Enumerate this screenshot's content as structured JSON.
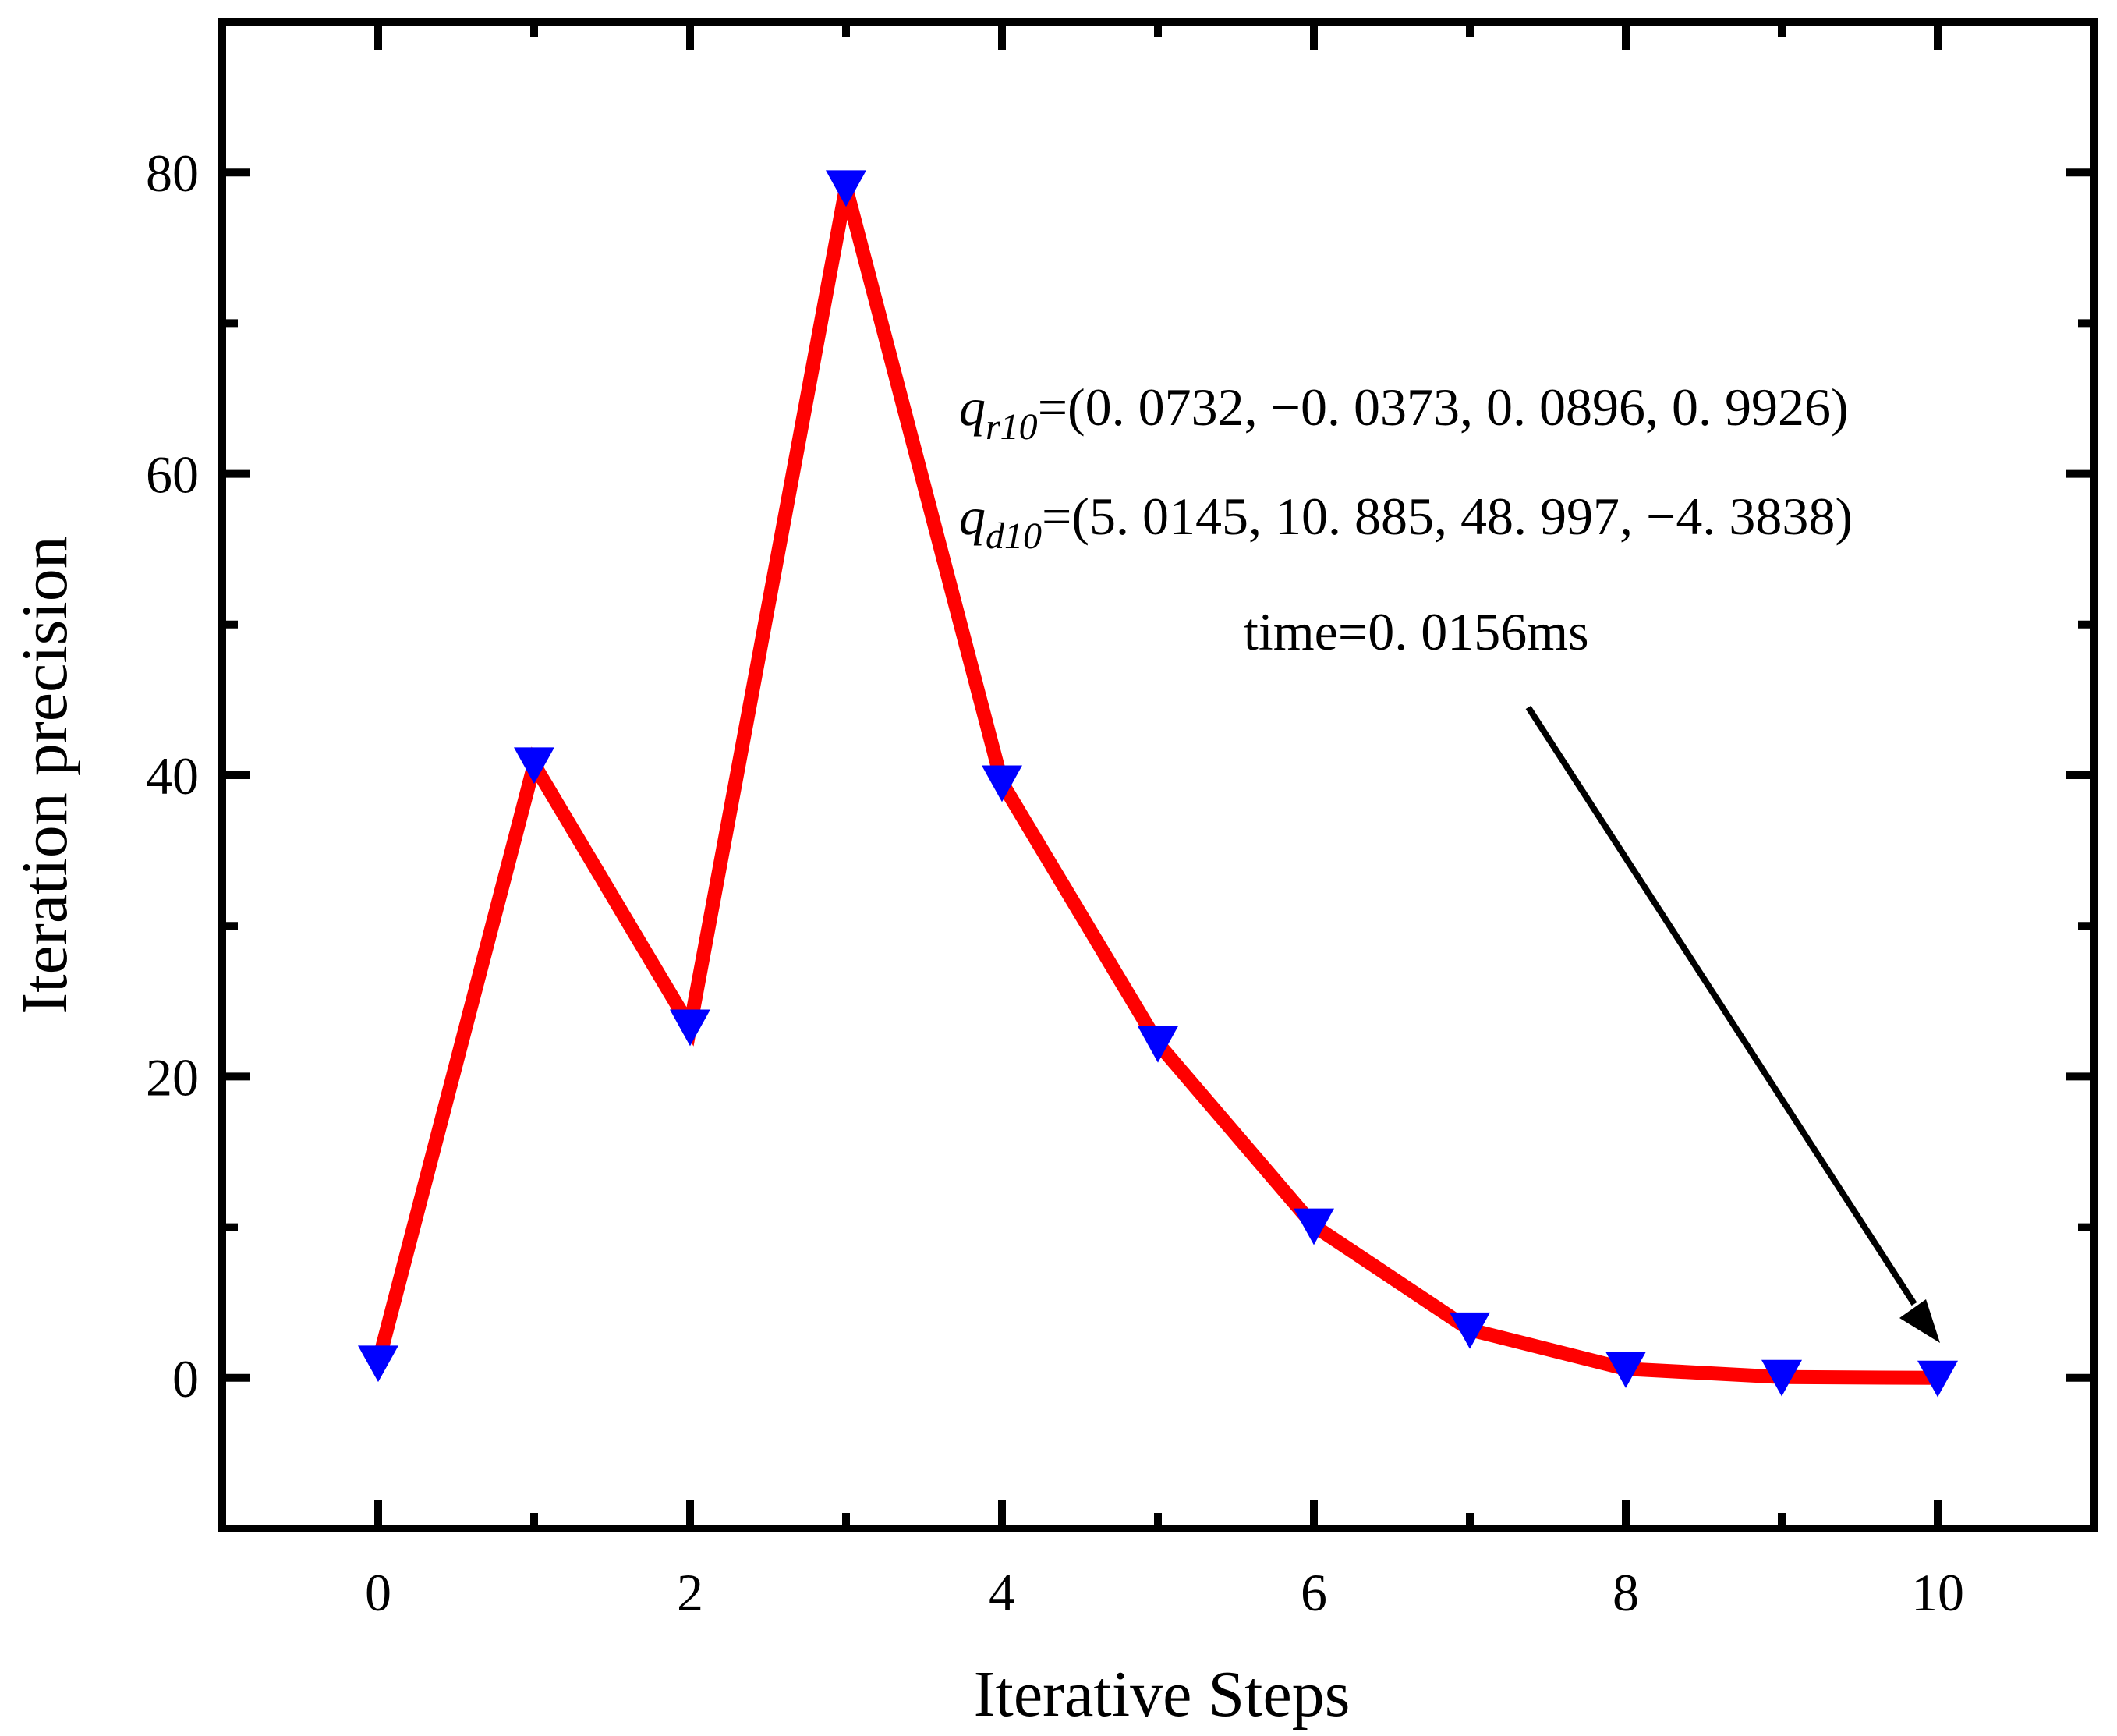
{
  "chart_data": {
    "type": "line",
    "title": "",
    "xlabel": "Iterative Steps",
    "ylabel": "Iteration precision",
    "xlim": [
      -1,
      11
    ],
    "ylim": [
      -10,
      90
    ],
    "xticks": [
      0,
      2,
      4,
      6,
      8,
      10
    ],
    "yticks": [
      0,
      20,
      40,
      60,
      80
    ],
    "xticks_minor": [
      1,
      3,
      5,
      7,
      9
    ],
    "yticks_minor": [
      10,
      30,
      50,
      70
    ],
    "grid": false,
    "series": [
      {
        "name": "Iteration precision",
        "x": [
          0,
          1,
          2,
          3,
          4,
          5,
          6,
          7,
          8,
          9,
          10
        ],
        "values": [
          1.0,
          40.7,
          23.3,
          79.0,
          39.5,
          22.2,
          10.1,
          3.2,
          0.6,
          0.05,
          0.0
        ],
        "line_color": "#ff0000",
        "marker": "down-triangle",
        "marker_color": "#0000ff"
      }
    ],
    "annotations": {
      "qr_label": "q",
      "qr_subscript": "r10",
      "qr_value": "=(0. 0732, −0. 0373, 0. 0896, 0. 9926)",
      "qd_label": "q",
      "qd_subscript": "d10",
      "qd_value": "=(5. 0145, 10. 885, 48. 997, −4. 3838)",
      "time_text": "time=0. 0156ms",
      "arrow_points_to": {
        "x": 10,
        "y": 0
      }
    }
  }
}
